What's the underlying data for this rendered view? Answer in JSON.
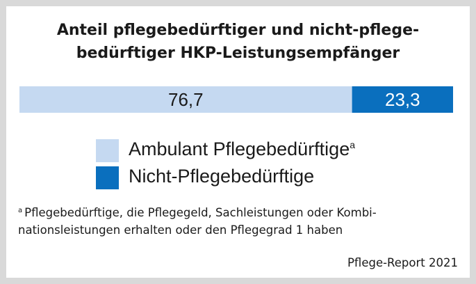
{
  "title": {
    "line1": "Anteil pflegebedürftiger und nicht-pflege-",
    "line2": "bedürftiger HKP-Leistungsempfänger"
  },
  "chart_data": {
    "type": "bar",
    "orientation": "horizontal-stacked",
    "total": 100,
    "series": [
      {
        "name": "Ambulant Pflegebedürftige",
        "value": 76.7,
        "label": "76,7",
        "color": "#c5d9f1"
      },
      {
        "name": "Nicht-Pflegebedürftige",
        "value": 23.3,
        "label": "23,3",
        "color": "#0a6fbe"
      }
    ],
    "label_colors": [
      "#1a1a1a",
      "#ffffff"
    ]
  },
  "legend": {
    "items": [
      {
        "label": "Ambulant Pflegebedürftige",
        "sup": "a",
        "color": "#c5d9f1"
      },
      {
        "label": "Nicht-Pflegebedürftige",
        "sup": "",
        "color": "#0a6fbe"
      }
    ]
  },
  "footnote": {
    "mark": "a",
    "line1": "Pflegebedürftige, die Pflegegeld, Sachleistungen oder Kombi-",
    "line2": "nationsleistungen erhalten oder den Pflegegrad 1 haben"
  },
  "source": "Pflege-Report 2021",
  "colors": {
    "border": "#d9d9d9",
    "text": "#1a1a1a"
  }
}
